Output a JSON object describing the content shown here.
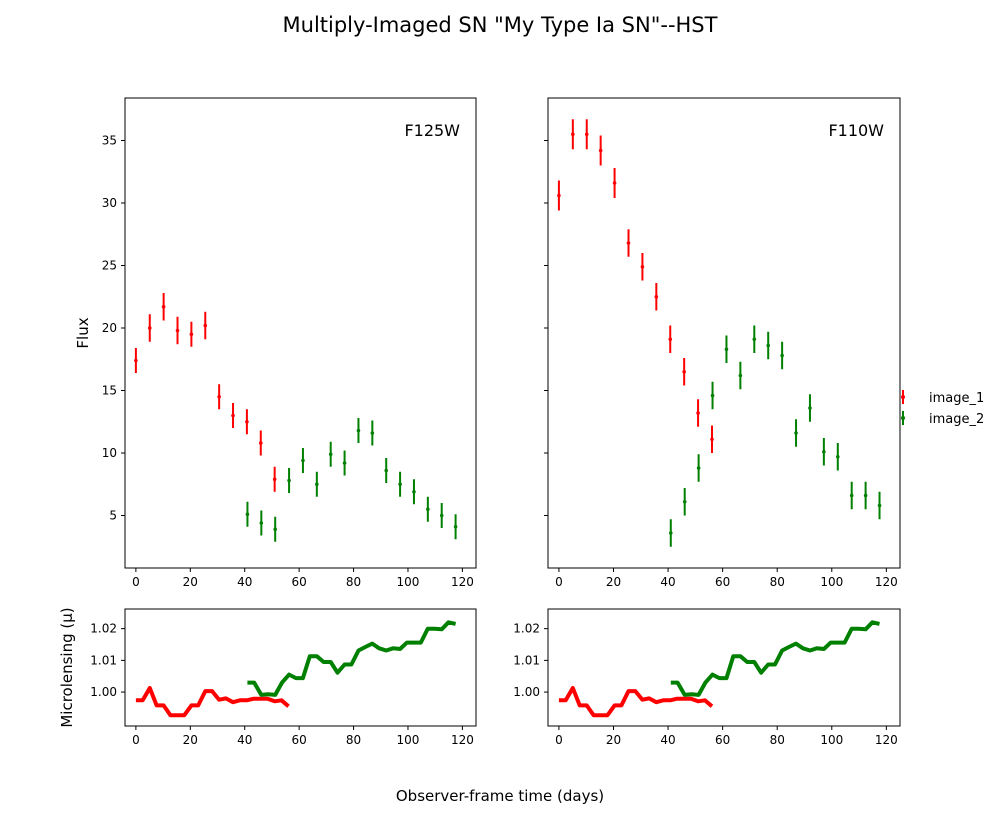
{
  "figure": {
    "title": "Multiply-Imaged SN \"My Type Ia SN\"--HST",
    "xlabel": "Observer-frame time (days)",
    "legend": [
      {
        "label": "image_1",
        "color": "#ff0000"
      },
      {
        "label": "image_2",
        "color": "#008000"
      }
    ]
  },
  "chart_data": [
    {
      "type": "scatter",
      "panel": "flux-f125w",
      "annotation": "F125W",
      "ylabel": "Flux",
      "xlim": [
        -4,
        125
      ],
      "ylim": [
        0.8,
        38.4
      ],
      "xticks": [
        0,
        20,
        40,
        60,
        80,
        100,
        120
      ],
      "yticks": [
        5,
        10,
        15,
        20,
        25,
        30,
        35
      ],
      "yticklabels_visible": true,
      "series": [
        {
          "name": "image_1",
          "color": "#ff0000",
          "x": [
            0,
            5.1,
            10.2,
            15.3,
            20.4,
            25.5,
            30.6,
            35.7,
            40.8,
            45.9,
            51.0
          ],
          "y": [
            17.4,
            20.0,
            21.7,
            19.8,
            19.5,
            20.2,
            14.5,
            13.0,
            12.5,
            10.8,
            7.9
          ],
          "yerr": [
            1.0,
            1.1,
            1.1,
            1.1,
            1.0,
            1.1,
            1.0,
            1.0,
            1.0,
            1.0,
            1.0
          ]
        },
        {
          "name": "image_2",
          "color": "#008000",
          "x": [
            41.0,
            46.1,
            51.2,
            56.3,
            61.4,
            66.5,
            71.6,
            76.7,
            81.8,
            86.9,
            92.0,
            97.1,
            102.2,
            107.3,
            112.4,
            117.5
          ],
          "y": [
            5.1,
            4.4,
            3.9,
            7.8,
            9.4,
            7.5,
            9.9,
            9.2,
            11.8,
            11.6,
            8.6,
            7.5,
            6.9,
            5.5,
            5.0,
            4.1
          ],
          "yerr": [
            1.0,
            1.0,
            1.0,
            1.0,
            1.0,
            1.0,
            1.0,
            1.0,
            1.0,
            1.0,
            1.0,
            1.0,
            1.0,
            1.0,
            1.0,
            1.0
          ]
        }
      ]
    },
    {
      "type": "scatter",
      "panel": "flux-f110w",
      "annotation": "F110W",
      "ylabel": "",
      "xlim": [
        -4,
        125
      ],
      "ylim": [
        0.8,
        38.4
      ],
      "xticks": [
        0,
        20,
        40,
        60,
        80,
        100,
        120
      ],
      "yticks": [
        5,
        10,
        15,
        20,
        25,
        30,
        35
      ],
      "yticklabels_visible": false,
      "series": [
        {
          "name": "image_1",
          "color": "#ff0000",
          "x": [
            0,
            5.1,
            10.2,
            15.3,
            20.4,
            25.5,
            30.6,
            35.7,
            40.8,
            45.9,
            51.0,
            56.1
          ],
          "y": [
            30.6,
            35.5,
            35.5,
            34.2,
            31.6,
            26.8,
            24.9,
            22.5,
            19.1,
            16.5,
            13.2,
            11.1
          ],
          "yerr": [
            1.2,
            1.2,
            1.2,
            1.2,
            1.2,
            1.1,
            1.1,
            1.1,
            1.1,
            1.1,
            1.1,
            1.1
          ]
        },
        {
          "name": "image_2",
          "color": "#008000",
          "x": [
            41.0,
            46.1,
            51.2,
            56.3,
            61.4,
            66.5,
            71.6,
            76.7,
            81.8,
            86.9,
            92.0,
            97.1,
            102.2,
            107.3,
            112.4,
            117.5
          ],
          "y": [
            3.6,
            6.1,
            8.8,
            14.6,
            18.3,
            16.2,
            19.1,
            18.6,
            17.8,
            11.6,
            13.6,
            10.1,
            9.7,
            6.6,
            6.6,
            5.8
          ],
          "yerr": [
            1.1,
            1.1,
            1.1,
            1.1,
            1.1,
            1.1,
            1.1,
            1.1,
            1.1,
            1.1,
            1.1,
            1.1,
            1.1,
            1.1,
            1.1,
            1.1
          ]
        }
      ]
    },
    {
      "type": "line",
      "panel": "microlensing-f125w",
      "ylabel": "Microlensing (μ)",
      "xlim": [
        -4,
        125
      ],
      "ylim": [
        0.9893,
        1.0262
      ],
      "xticks": [
        0,
        20,
        40,
        60,
        80,
        100,
        120
      ],
      "yticks": [
        1.0,
        1.01,
        1.02
      ],
      "ytick_labels": [
        "1.00",
        "1.01",
        "1.02"
      ],
      "yticklabels_visible": true,
      "series": [
        {
          "name": "image_1",
          "color": "#ff0000",
          "x": [
            0,
            2.5,
            5.1,
            7.6,
            10.2,
            12.7,
            15.3,
            17.8,
            20.4,
            22.9,
            25.5,
            28.0,
            30.6,
            33.1,
            35.7,
            38.2,
            40.8,
            43.3,
            45.9,
            48.4,
            51.0,
            53.5,
            56.1
          ],
          "y": [
            0.9974,
            0.9974,
            1.0013,
            0.9958,
            0.9958,
            0.9927,
            0.9927,
            0.9927,
            0.9958,
            0.9958,
            1.0003,
            1.0003,
            0.9976,
            0.998,
            0.9968,
            0.9974,
            0.9974,
            0.9979,
            0.9979,
            0.9979,
            0.9971,
            0.9974,
            0.9955
          ]
        },
        {
          "name": "image_2",
          "color": "#008000",
          "x": [
            41.0,
            43.5,
            46.1,
            48.6,
            51.2,
            53.7,
            56.3,
            58.8,
            61.4,
            63.9,
            66.5,
            69.0,
            71.6,
            74.1,
            76.7,
            79.2,
            81.8,
            84.3,
            86.9,
            89.4,
            92.0,
            94.5,
            97.1,
            99.6,
            102.2,
            104.7,
            107.3,
            109.8,
            112.4,
            114.9,
            117.5
          ],
          "y": [
            1.003,
            1.003,
            0.9991,
            0.9993,
            0.9991,
            1.003,
            1.0055,
            1.0044,
            1.0044,
            1.0113,
            1.0113,
            1.0095,
            1.0095,
            1.0061,
            1.0087,
            1.0087,
            1.0131,
            1.0142,
            1.0153,
            1.0138,
            1.0131,
            1.0138,
            1.0136,
            1.0156,
            1.0156,
            1.0156,
            1.02,
            1.02,
            1.0198,
            1.022,
            1.0215
          ]
        }
      ]
    },
    {
      "type": "line",
      "panel": "microlensing-f110w",
      "ylabel": "",
      "xlim": [
        -4,
        125
      ],
      "ylim": [
        0.9893,
        1.0262
      ],
      "xticks": [
        0,
        20,
        40,
        60,
        80,
        100,
        120
      ],
      "yticks": [
        1.0,
        1.01,
        1.02
      ],
      "ytick_labels": [
        "1.00",
        "1.01",
        "1.02"
      ],
      "yticklabels_visible": true,
      "series": [
        {
          "name": "image_1",
          "color": "#ff0000",
          "x": [
            0,
            2.5,
            5.1,
            7.6,
            10.2,
            12.7,
            15.3,
            17.8,
            20.4,
            22.9,
            25.5,
            28.0,
            30.6,
            33.1,
            35.7,
            38.2,
            40.8,
            43.3,
            45.9,
            48.4,
            51.0,
            53.5,
            56.1
          ],
          "y": [
            0.9974,
            0.9974,
            1.0013,
            0.9958,
            0.9958,
            0.9927,
            0.9927,
            0.9927,
            0.9958,
            0.9958,
            1.0003,
            1.0003,
            0.9976,
            0.998,
            0.9968,
            0.9974,
            0.9974,
            0.9979,
            0.9979,
            0.9979,
            0.9971,
            0.9974,
            0.9955
          ]
        },
        {
          "name": "image_2",
          "color": "#008000",
          "x": [
            41.0,
            43.5,
            46.1,
            48.6,
            51.2,
            53.7,
            56.3,
            58.8,
            61.4,
            63.9,
            66.5,
            69.0,
            71.6,
            74.1,
            76.7,
            79.2,
            81.8,
            84.3,
            86.9,
            89.4,
            92.0,
            94.5,
            97.1,
            99.6,
            102.2,
            104.7,
            107.3,
            109.8,
            112.4,
            114.9,
            117.5
          ],
          "y": [
            1.003,
            1.003,
            0.9991,
            0.9993,
            0.9991,
            1.003,
            1.0055,
            1.0044,
            1.0044,
            1.0113,
            1.0113,
            1.0095,
            1.0095,
            1.0061,
            1.0087,
            1.0087,
            1.0131,
            1.0142,
            1.0153,
            1.0138,
            1.0131,
            1.0138,
            1.0136,
            1.0156,
            1.0156,
            1.0156,
            1.02,
            1.02,
            1.0198,
            1.022,
            1.0215
          ]
        }
      ]
    }
  ]
}
